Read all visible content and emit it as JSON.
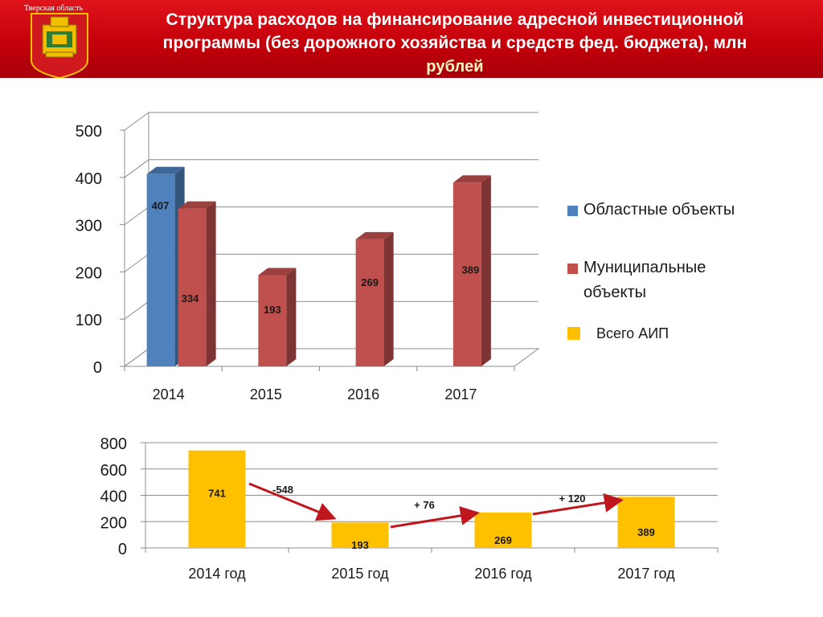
{
  "header": {
    "region_label": "Тверская область",
    "title_line1": "Структура расходов на финансирование адресной инвестиционной",
    "title_line2": "программы (без дорожного хозяйства и средств фед. бюджета), млн",
    "title_line3": "рублей",
    "colors": {
      "band": "#c4000a",
      "emblem_bg": "#d0191f",
      "emblem_gold": "#f0c000"
    }
  },
  "legend": {
    "items": [
      {
        "label": "Областные объекты",
        "color": "#4f81bd"
      },
      {
        "label_line1": "Муниципальные",
        "label_line2": "объекты",
        "color": "#c0504d"
      },
      {
        "label": "Всего АИП",
        "color": "#ffc000"
      }
    ]
  },
  "chart_data": [
    {
      "type": "bar",
      "style": "3d-clustered",
      "categories": [
        "2014",
        "2015",
        "2016",
        "2017"
      ],
      "series": [
        {
          "name": "Областные объекты",
          "values": [
            407,
            null,
            null,
            null
          ],
          "color": "#4f81bd"
        },
        {
          "name": "Муниципальные объекты",
          "values": [
            334,
            193,
            269,
            389
          ],
          "color": "#c0504d"
        }
      ],
      "data_labels": [
        "407",
        "334",
        "193",
        "269",
        "389"
      ],
      "ylim": [
        0,
        500
      ],
      "yticks": [
        "0",
        "100",
        "200",
        "300",
        "400",
        "500"
      ],
      "grid": true,
      "legend_position": "right"
    },
    {
      "type": "bar",
      "categories": [
        "2014 год",
        "2015 год",
        "2016 год",
        "2017 год"
      ],
      "series": [
        {
          "name": "Всего АИП",
          "values": [
            741,
            193,
            269,
            389
          ],
          "color": "#ffc000"
        }
      ],
      "data_labels": [
        "741",
        "193",
        "269",
        "389"
      ],
      "ylim": [
        0,
        800
      ],
      "yticks": [
        "0",
        "200",
        "400",
        "600",
        "800"
      ],
      "grid": true,
      "annotations": [
        {
          "text": "-548",
          "from": "2014 год",
          "to": "2015 год"
        },
        {
          "text": "+ 76",
          "from": "2015 год",
          "to": "2016 год"
        },
        {
          "text": "+ 120",
          "from": "2016 год",
          "to": "2017 год"
        }
      ],
      "arrow_color": "#c0171f"
    }
  ]
}
